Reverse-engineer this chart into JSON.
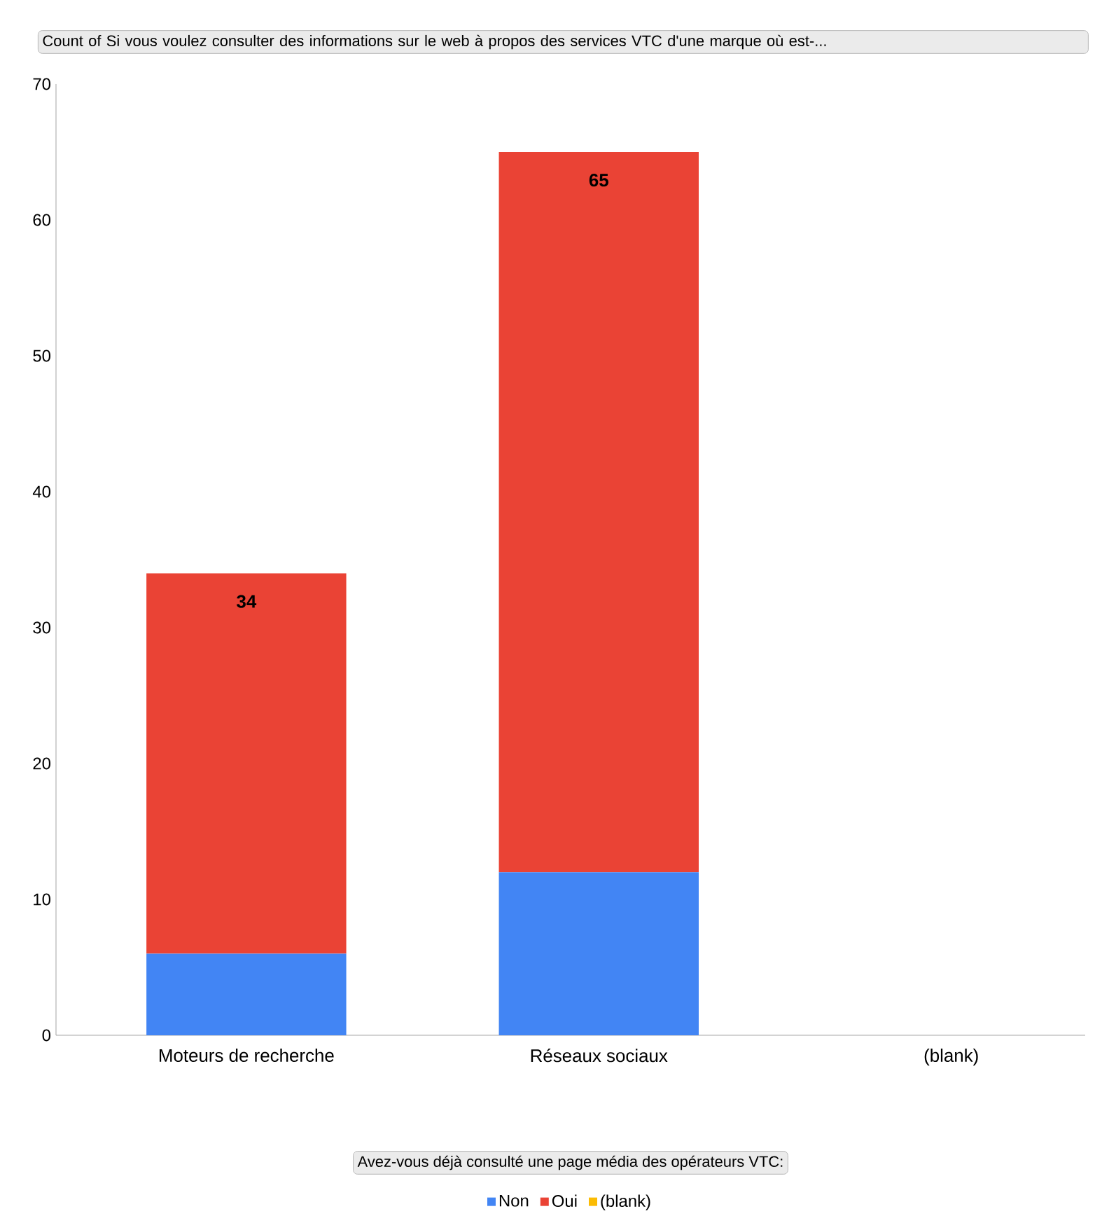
{
  "chart_data": {
    "type": "bar",
    "stacked": true,
    "title": "Count of Si vous voulez consulter des informations sur le web à propos des services VTC d'une marque où est-...",
    "legend_title": "Avez-vous déjà consulté une page média des opérateurs VTC:",
    "categories": [
      "Moteurs de recherche",
      "Réseaux sociaux",
      "(blank)"
    ],
    "series": [
      {
        "name": "Non",
        "color": "#4285f4",
        "values": [
          6,
          12,
          null
        ]
      },
      {
        "name": "Oui",
        "color": "#ea4335",
        "values": [
          28,
          53,
          null
        ]
      },
      {
        "name": "(blank)",
        "color": "#fbbc04",
        "values": [
          null,
          null,
          null
        ]
      }
    ],
    "totals": [
      "34",
      "65",
      null
    ],
    "ylim": [
      0,
      70
    ],
    "yticks": [
      0,
      10,
      20,
      30,
      40,
      50,
      60,
      70
    ],
    "grid": false,
    "legend": "bottom"
  }
}
